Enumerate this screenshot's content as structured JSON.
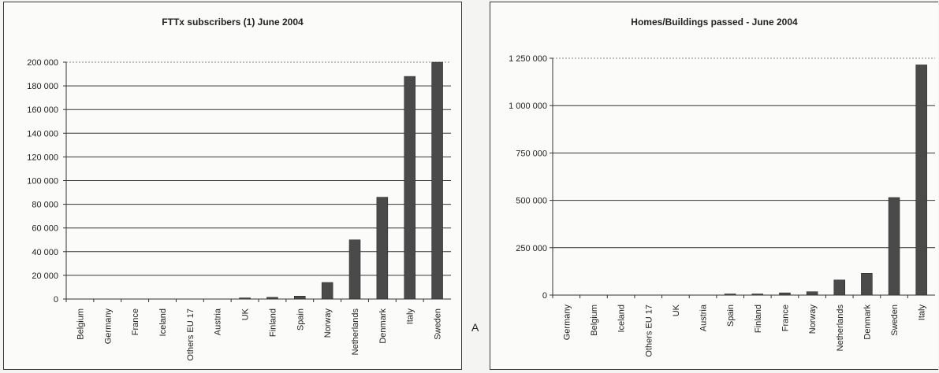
{
  "chart_data": [
    {
      "type": "bar",
      "title": "FTTx subscribers (1) June 2004",
      "categories": [
        "Belgium",
        "Germany",
        "France",
        "Iceland",
        "Others EU 17",
        "Austria",
        "UK",
        "Finland",
        "Spain",
        "Norway",
        "Netherlands",
        "Denmark",
        "Italy",
        "Sweden"
      ],
      "values": [
        0,
        0,
        0,
        0,
        0,
        0,
        500,
        1500,
        2500,
        14000,
        50000,
        86000,
        188000,
        200000
      ],
      "ylim": [
        0,
        200000
      ],
      "yticks": [
        "0",
        "20 000",
        "40 000",
        "60 000",
        "80 000",
        "100 000",
        "120 000",
        "140 000",
        "160 000",
        "180 000",
        "200 000"
      ],
      "grid": true,
      "legend": "none",
      "bar_color": "#4a4a4a"
    },
    {
      "type": "bar",
      "title": "Homes/Buildings passed - June 2004",
      "categories": [
        "Germany",
        "Belgium",
        "Iceland",
        "Others EU 17",
        "UK",
        "Austria",
        "Spain",
        "Finland",
        "France",
        "Norway",
        "Netherlands",
        "Denmark",
        "Sweden",
        "Italy"
      ],
      "values": [
        0,
        0,
        0,
        0,
        0,
        0,
        3000,
        5000,
        12000,
        18000,
        80000,
        115000,
        515000,
        1215000
      ],
      "ylim": [
        0,
        1250000
      ],
      "yticks": [
        "0",
        "250 000",
        "500 000",
        "750 000",
        "1 000 000",
        "1 250 000"
      ],
      "grid": true,
      "legend": "none",
      "bar_color": "#4a4a4a"
    }
  ],
  "stray_letter": "A"
}
